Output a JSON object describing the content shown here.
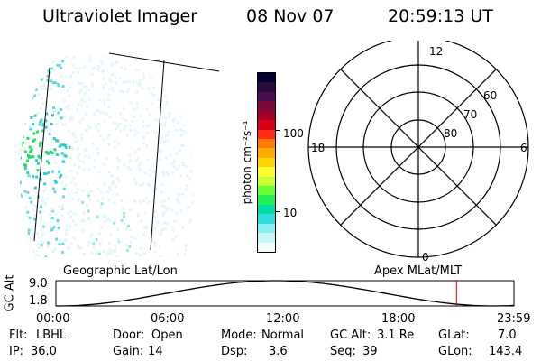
{
  "header": {
    "title": "Ultraviolet Imager",
    "date": "08 Nov 07",
    "time": "20:59:13 UT"
  },
  "colorbar": {
    "unit_label": "photon cm⁻²s⁻¹",
    "ticks": [
      "100",
      "10"
    ],
    "colors": [
      "#000033",
      "#2a0a3a",
      "#4a0e4e",
      "#7a0a3a",
      "#a4002a",
      "#d60018",
      "#ff2a1a",
      "#ff7a00",
      "#ffaa00",
      "#ffd400",
      "#ffff33",
      "#c8ff33",
      "#66ff33",
      "#22ee55",
      "#00ddaa",
      "#33dddd",
      "#88eeee",
      "#c8f6f6",
      "#eefcfc"
    ]
  },
  "polar_plot": {
    "mlt_labels": {
      "top": "12",
      "right": "6",
      "bottom": "0",
      "left": "18"
    },
    "lat_labels": [
      "60",
      "70",
      "80"
    ]
  },
  "timeline": {
    "left_label": "Geographic Lat/Lon",
    "right_label": "Apex MLat/MLT",
    "axis_title": "GC Alt",
    "y_ticks": [
      "9.0",
      "1.8"
    ],
    "x_ticks": [
      "00:00",
      "06:00",
      "12:00",
      "18:00",
      "23:59"
    ],
    "cursor_hour": 20.99,
    "cursor_color": "#cc0000"
  },
  "status": {
    "filter": {
      "label": "Flt:",
      "value": "LBHL"
    },
    "ip": {
      "label": "IP:",
      "value": "36.0"
    },
    "door": {
      "label": "Door:",
      "value": "Open"
    },
    "gain": {
      "label": "Gain:",
      "value": "14"
    },
    "mode": {
      "label": "Mode:",
      "value": "Normal"
    },
    "dsp": {
      "label": "Dsp:",
      "value": "3.6"
    },
    "gc_alt": {
      "label": "GC Alt:",
      "value": "3.1 Re"
    },
    "seq": {
      "label": "Seq:",
      "value": "39"
    },
    "glat": {
      "label": "GLat:",
      "value": "7.0"
    },
    "glon": {
      "label": "GLon:",
      "value": "143.4"
    }
  }
}
